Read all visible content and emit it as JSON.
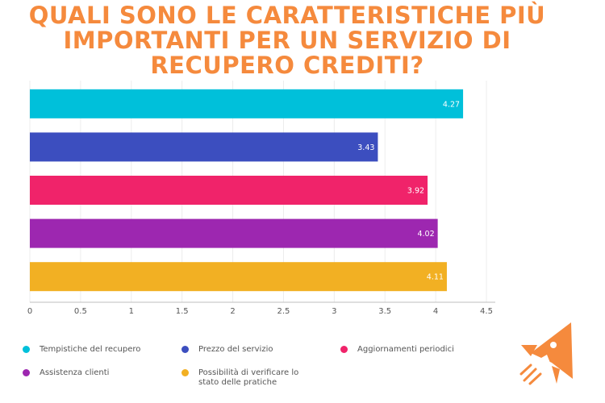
{
  "title_lines": [
    "QUALI SONO LE CARATTERISTICHE PIÙ",
    "IMPORTANTI PER UN SERVIZIO DI",
    "RECUPERO CREDITI?"
  ],
  "colors": {
    "title": "#F58A3D",
    "logo": "#F58A3D"
  },
  "chart_data": {
    "type": "bar",
    "orientation": "horizontal",
    "categories": [
      "Tempistiche del recupero",
      "Prezzo del servizio",
      "Aggiornamenti periodici",
      "Assistenza clienti",
      "Possibilità di verificare lo stato delle pratiche"
    ],
    "values": [
      4.27,
      3.43,
      3.92,
      4.02,
      4.11
    ],
    "value_labels": [
      "4.27",
      "3.43",
      "3.92",
      "4.02",
      "4.11"
    ],
    "colors": [
      "#00C0DA",
      "#3C4EBF",
      "#F0236A",
      "#9D27B0",
      "#F2B023"
    ],
    "xlim": [
      0,
      4.5
    ],
    "xticks": [
      "0",
      "0.5",
      "1",
      "1.5",
      "2",
      "2.5",
      "3",
      "3.5",
      "4",
      "4.5"
    ],
    "grid": true,
    "legend_position": "bottom"
  },
  "legend": {
    "items": [
      {
        "label": "Tempistiche del recupero",
        "color": "#00C0DA"
      },
      {
        "label": "Prezzo del servizio",
        "color": "#3C4EBF"
      },
      {
        "label": "Aggiornamenti periodici",
        "color": "#F0236A"
      },
      {
        "label": "Assistenza clienti",
        "color": "#9D27B0"
      },
      {
        "label": "Possibilità di verificare lo stato delle pratiche",
        "color": "#F2B023"
      }
    ]
  },
  "logo_icon": "rocket-icon"
}
